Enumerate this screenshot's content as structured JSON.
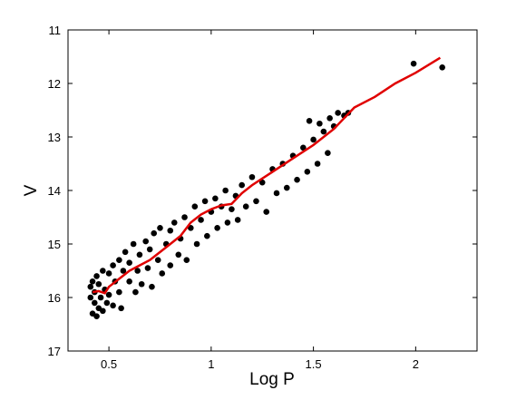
{
  "chart_data": {
    "type": "scatter",
    "xlabel": "Log P",
    "ylabel": "V",
    "xlim": [
      0.3,
      2.3
    ],
    "ylim": [
      11,
      17
    ],
    "y_inverted": true,
    "xticks": [
      0.5,
      1,
      1.5,
      2
    ],
    "yticks": [
      11,
      12,
      13,
      14,
      15,
      16,
      17
    ],
    "point_color": "#000000",
    "scatter": {
      "x": [
        0.41,
        0.41,
        0.42,
        0.42,
        0.43,
        0.43,
        0.44,
        0.44,
        0.45,
        0.45,
        0.46,
        0.47,
        0.47,
        0.48,
        0.49,
        0.5,
        0.5,
        0.52,
        0.52,
        0.53,
        0.55,
        0.55,
        0.56,
        0.57,
        0.58,
        0.6,
        0.6,
        0.62,
        0.63,
        0.64,
        0.65,
        0.66,
        0.68,
        0.69,
        0.7,
        0.71,
        0.72,
        0.74,
        0.75,
        0.76,
        0.78,
        0.8,
        0.8,
        0.82,
        0.84,
        0.85,
        0.87,
        0.88,
        0.9,
        0.92,
        0.93,
        0.95,
        0.97,
        0.98,
        1.0,
        1.02,
        1.03,
        1.05,
        1.07,
        1.08,
        1.1,
        1.12,
        1.13,
        1.15,
        1.17,
        1.2,
        1.22,
        1.25,
        1.27,
        1.3,
        1.32,
        1.35,
        1.37,
        1.4,
        1.42,
        1.45,
        1.47,
        1.48,
        1.5,
        1.52,
        1.53,
        1.55,
        1.57,
        1.58,
        1.6,
        1.62,
        1.65,
        1.67,
        1.99,
        2.13
      ],
      "y": [
        16.0,
        15.8,
        16.3,
        15.7,
        16.1,
        15.9,
        16.35,
        15.6,
        16.2,
        15.75,
        16.0,
        15.5,
        16.25,
        15.85,
        16.1,
        15.55,
        15.95,
        15.4,
        16.15,
        15.7,
        15.3,
        15.9,
        16.2,
        15.5,
        15.15,
        15.7,
        15.35,
        15.0,
        15.9,
        15.5,
        15.2,
        15.75,
        14.95,
        15.45,
        15.1,
        15.8,
        14.8,
        15.3,
        14.7,
        15.55,
        15.0,
        14.75,
        15.4,
        14.6,
        15.2,
        14.9,
        14.5,
        15.3,
        14.7,
        14.3,
        15.0,
        14.55,
        14.2,
        14.85,
        14.4,
        14.15,
        14.7,
        14.3,
        14.0,
        14.6,
        14.35,
        14.1,
        14.55,
        13.9,
        14.3,
        13.75,
        14.2,
        13.85,
        14.4,
        13.6,
        14.05,
        13.5,
        13.95,
        13.35,
        13.8,
        13.2,
        13.65,
        12.7,
        13.05,
        13.5,
        12.75,
        12.9,
        13.3,
        12.65,
        12.8,
        12.55,
        12.6,
        12.55,
        11.63,
        11.7
      ]
    },
    "line": {
      "color": "#e00000",
      "x": [
        0.42,
        0.45,
        0.48,
        0.5,
        0.55,
        0.6,
        0.65,
        0.7,
        0.75,
        0.8,
        0.85,
        0.9,
        0.95,
        1.0,
        1.05,
        1.1,
        1.15,
        1.2,
        1.3,
        1.4,
        1.5,
        1.6,
        1.7,
        1.8,
        1.9,
        2.0,
        2.12
      ],
      "y": [
        15.9,
        15.88,
        15.92,
        15.8,
        15.65,
        15.5,
        15.4,
        15.3,
        15.15,
        15.0,
        14.85,
        14.6,
        14.45,
        14.35,
        14.28,
        14.25,
        14.05,
        13.9,
        13.65,
        13.4,
        13.15,
        12.85,
        12.45,
        12.25,
        12.0,
        11.8,
        11.52
      ]
    }
  }
}
